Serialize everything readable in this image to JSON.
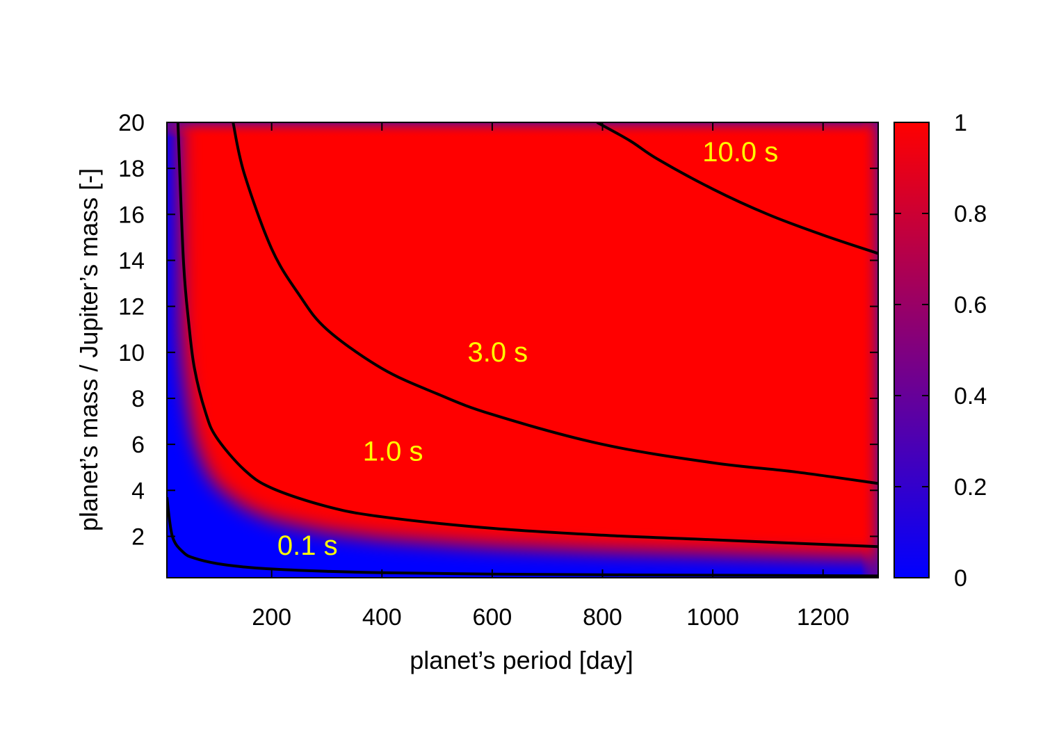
{
  "chart_data": {
    "type": "heatmap",
    "xlabel": "planet’s period [day]",
    "ylabel": "planet’s mass  / Jupiter’s mass [-]",
    "xlim": [
      10,
      1300
    ],
    "ylim": [
      0.2,
      20
    ],
    "xticks": [
      200,
      400,
      600,
      800,
      1000,
      1200
    ],
    "yticks": [
      2,
      4,
      6,
      8,
      10,
      12,
      14,
      16,
      18,
      20
    ],
    "colorbar": {
      "range": [
        0,
        1
      ],
      "ticks": [
        0,
        0.2,
        0.4,
        0.6,
        0.8,
        1
      ],
      "tick_labels": [
        "0",
        "0.2",
        "0.4",
        "0.6",
        "0.8",
        "1"
      ],
      "low_color": "#0000ff",
      "high_color": "#ff0000"
    },
    "transition_contour_s": 1.5,
    "contours": [
      {
        "name": "0.1 s",
        "level_s": 0.1,
        "label_at": [
          265,
          1.2
        ],
        "points": [
          [
            10,
            3.7
          ],
          [
            20,
            2.0
          ],
          [
            40,
            1.3
          ],
          [
            60,
            1.05
          ],
          [
            100,
            0.82
          ],
          [
            150,
            0.67
          ],
          [
            200,
            0.58
          ],
          [
            300,
            0.48
          ],
          [
            400,
            0.42
          ],
          [
            600,
            0.36
          ],
          [
            800,
            0.33
          ],
          [
            1000,
            0.31
          ],
          [
            1300,
            0.28
          ]
        ]
      },
      {
        "name": "1.0 s",
        "level_s": 1.0,
        "label_at": [
          420,
          5.3
        ],
        "points": [
          [
            30,
            20
          ],
          [
            40,
            14
          ],
          [
            50,
            11.2
          ],
          [
            60,
            9.3
          ],
          [
            80,
            7.4
          ],
          [
            100,
            6.3
          ],
          [
            150,
            4.9
          ],
          [
            200,
            4.1
          ],
          [
            300,
            3.3
          ],
          [
            400,
            2.85
          ],
          [
            600,
            2.35
          ],
          [
            800,
            2.05
          ],
          [
            1000,
            1.85
          ],
          [
            1300,
            1.55
          ]
        ]
      },
      {
        "name": "3.0 s",
        "level_s": 3.0,
        "label_at": [
          610,
          9.6
        ],
        "points": [
          [
            130,
            20
          ],
          [
            150,
            17.8
          ],
          [
            200,
            14.5
          ],
          [
            250,
            12.5
          ],
          [
            300,
            11.0
          ],
          [
            400,
            9.3
          ],
          [
            500,
            8.2
          ],
          [
            600,
            7.3
          ],
          [
            800,
            6.0
          ],
          [
            1000,
            5.2
          ],
          [
            1150,
            4.8
          ],
          [
            1300,
            4.3
          ]
        ]
      },
      {
        "name": "10.0 s",
        "level_s": 10.0,
        "label_at": [
          1050,
          18.3
        ],
        "points": [
          [
            790,
            20
          ],
          [
            850,
            19.2
          ],
          [
            900,
            18.4
          ],
          [
            1000,
            17.1
          ],
          [
            1100,
            16.0
          ],
          [
            1200,
            15.1
          ],
          [
            1300,
            14.3
          ]
        ]
      }
    ]
  }
}
